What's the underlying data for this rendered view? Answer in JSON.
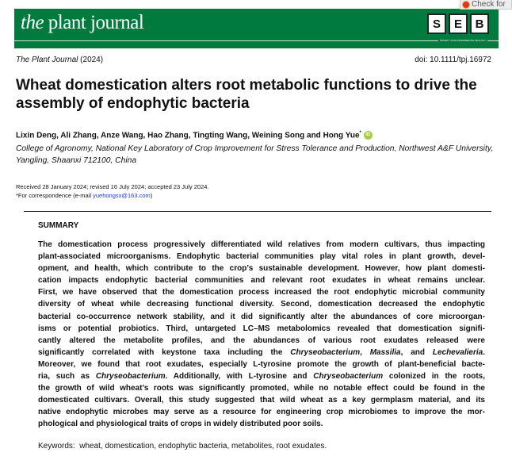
{
  "header": {
    "logo_italic": "the",
    "logo_rest": "plant journal",
    "seb": [
      "S",
      "E",
      "B"
    ],
    "seb_sub": "SOCIETY FOR EXPERIMENTAL BIOLOGY",
    "check": "Check for",
    "brand_color": "#007a3e"
  },
  "meta": {
    "journal": "The Plant Journal",
    "year": "(2024)",
    "doi": "doi: 10.1111/tpj.16972"
  },
  "title": "Wheat domestication alters root metabolic functions to drive the assembly of endophytic bacteria",
  "authors": "Lixin Deng, Ali Zhang, Anze Wang, Hao Zhang, Tingting Wang, Weining Song and Hong Yue",
  "author_mark": "*",
  "affiliation": "College of Agronomy, National Key Laboratory of Crop Improvement for Stress Tolerance and Production, Northwest A&F University, Yangling, Shaanxi 712100, China",
  "dates": "Received 28 January 2024; revised 16 July 2024; accepted 23 July 2024.",
  "correspondence": {
    "prefix": "*For correspondence (e-mail ",
    "email": "yuehongsx@163.com",
    "suffix": ")"
  },
  "summary": {
    "heading": "SUMMARY",
    "lines": [
      [
        "The domestication process progressively differentiated wild relatives from modern cultivars, thus impacting"
      ],
      [
        "plant-associated microorganisms. Endophytic bacterial communities play vital roles in plant growth, devel-"
      ],
      [
        "opment, and health, which contribute to the crop’s sustainable development. However, how plant domesti-"
      ],
      [
        "cation impacts endophytic bacterial communities and relevant root exudates in wheat remains unclear."
      ],
      [
        "First, we have observed that the domestication process increased the root endophytic microbial community"
      ],
      [
        "diversity of wheat while decreasing functional diversity. Second, domestication decreased the endophytic"
      ],
      [
        "bacterial co-occurrence network stability, and it did significantly alter the abundances of core microorgan-"
      ],
      [
        "isms or potential probiotics. Third, untargeted LC–MS metabolomics revealed that domestication signifi-"
      ],
      [
        "cantly altered the metabolite profiles, and the abundances of various root exudates released were"
      ],
      [
        "significantly correlated with keystone taxa including the ",
        "Chryseobacterium",
        ", ",
        "Massilia",
        ", and ",
        "Lechevalieria",
        "."
      ],
      [
        "Moreover, we found that root exudates, especially L-tyrosine promote the growth of plant-beneficial bacte-"
      ],
      [
        "ria, such as ",
        "Chryseobacterium",
        ". Additionally, with L-tyrosine and ",
        "Chryseobacterium",
        " colonized in the roots,"
      ],
      [
        "the growth of wild wheat’s roots was significantly promoted, while no notable effect could be found in the"
      ],
      [
        "domesticated cultivars. Overall, this study suggested that wild wheat as a key germplasm material, and its"
      ],
      [
        "native endophytic microbes may serve as a resource for engineering crop microbiomes to improve the mor-"
      ],
      [
        "phological and physiological traits of crops in widely distributed poor soils."
      ]
    ]
  },
  "keywords": {
    "label": "Keywords:",
    "text": "wheat, domestication, endophytic bacteria, metabolites, root exudates."
  }
}
